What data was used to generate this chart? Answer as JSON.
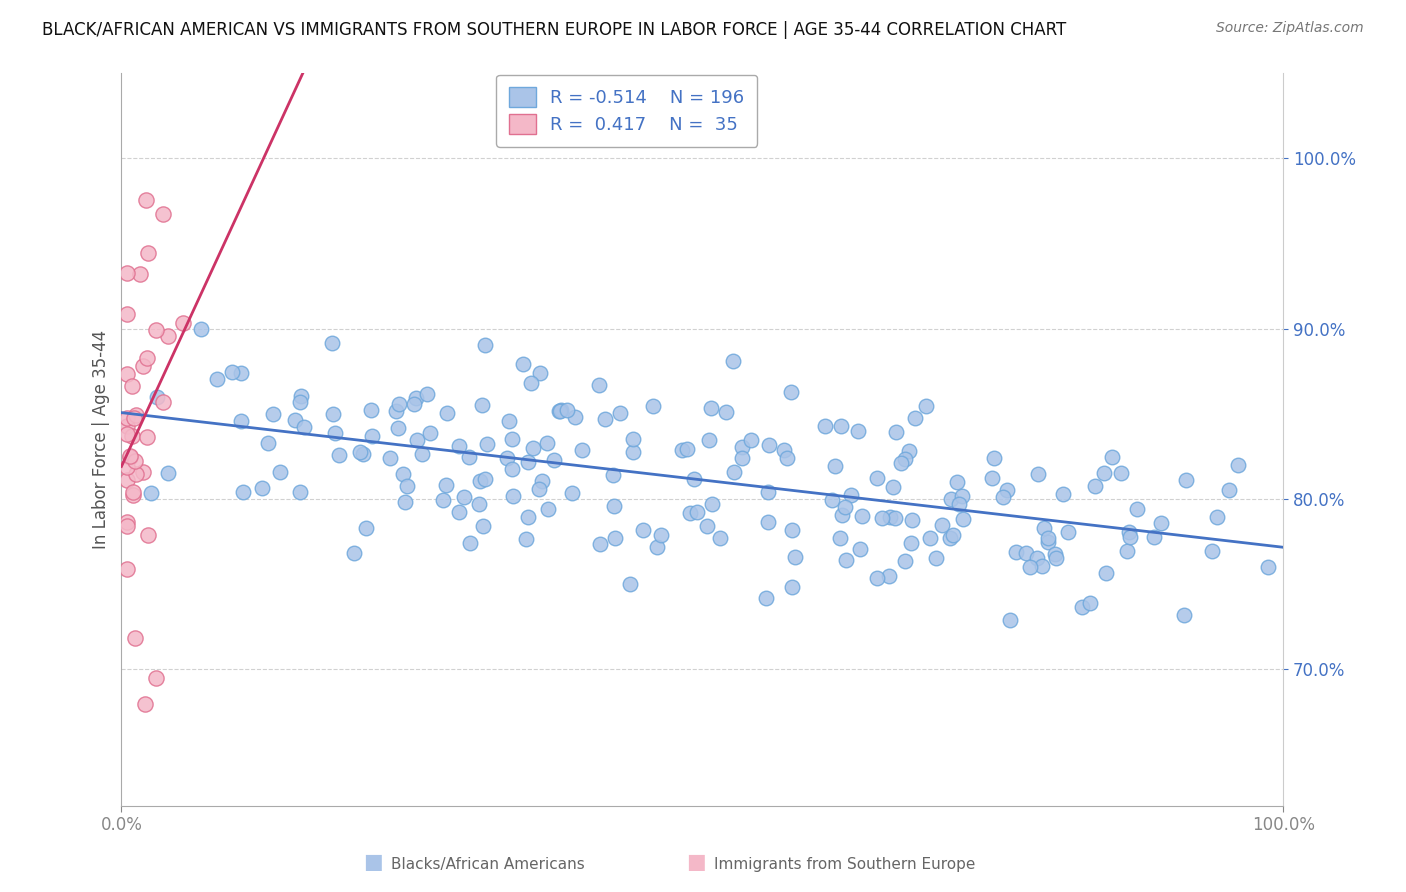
{
  "title": "BLACK/AFRICAN AMERICAN VS IMMIGRANTS FROM SOUTHERN EUROPE IN LABOR FORCE | AGE 35-44 CORRELATION CHART",
  "source": "Source: ZipAtlas.com",
  "ylabel": "In Labor Force | Age 35-44",
  "y_ticks": [
    0.7,
    0.8,
    0.9,
    1.0
  ],
  "y_tick_labels": [
    "70.0%",
    "80.0%",
    "90.0%",
    "100.0%"
  ],
  "x_ticks": [
    0.0,
    1.0
  ],
  "x_tick_labels": [
    "0.0%",
    "100.0%"
  ],
  "x_range": [
    0.0,
    1.0
  ],
  "y_range": [
    0.62,
    1.05
  ],
  "blue_R": -0.514,
  "blue_N": 196,
  "pink_R": 0.417,
  "pink_N": 35,
  "blue_scatter_facecolor": "#aac4e8",
  "blue_scatter_edgecolor": "#6fa8dc",
  "pink_scatter_facecolor": "#f4b8c8",
  "pink_scatter_edgecolor": "#e07090",
  "blue_line_color": "#4472c4",
  "pink_line_color": "#cc3366",
  "legend_label_blue": "Blacks/African Americans",
  "legend_label_pink": "Immigrants from Southern Europe",
  "background_color": "#ffffff",
  "grid_color": "#cccccc",
  "title_color": "#111111",
  "title_fontsize": 12,
  "legend_text_color": "#4472c4",
  "right_tick_color": "#4472c4"
}
